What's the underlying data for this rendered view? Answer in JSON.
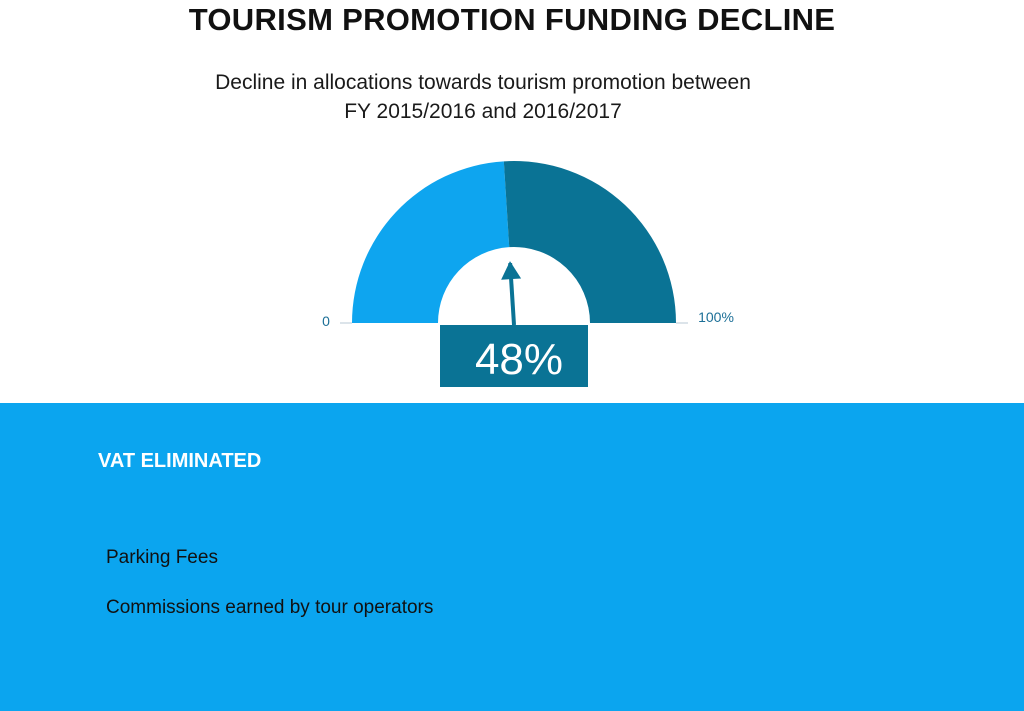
{
  "title": "TOURISM PROMOTION FUNDING DECLINE",
  "subtitle_lines": [
    "Decline in allocations towards tourism promotion between",
    "FY 2015/2016 and 2016/2017"
  ],
  "chart_data": {
    "type": "gauge",
    "value": 48,
    "value_label": "48%",
    "min_label": "0",
    "max_label": "100%",
    "range": [
      0,
      100
    ],
    "colors": {
      "filled": "#0ea5ef",
      "remaining": "#0a7395",
      "value_box": "#0a7395",
      "value_text": "#ffffff",
      "tick_labels": "#1c6f97"
    }
  },
  "panel": {
    "background": "#0ba5ef",
    "heading": "VAT ELIMINATED",
    "items": [
      "Parking Fees",
      "Commissions earned by tour operators"
    ]
  }
}
